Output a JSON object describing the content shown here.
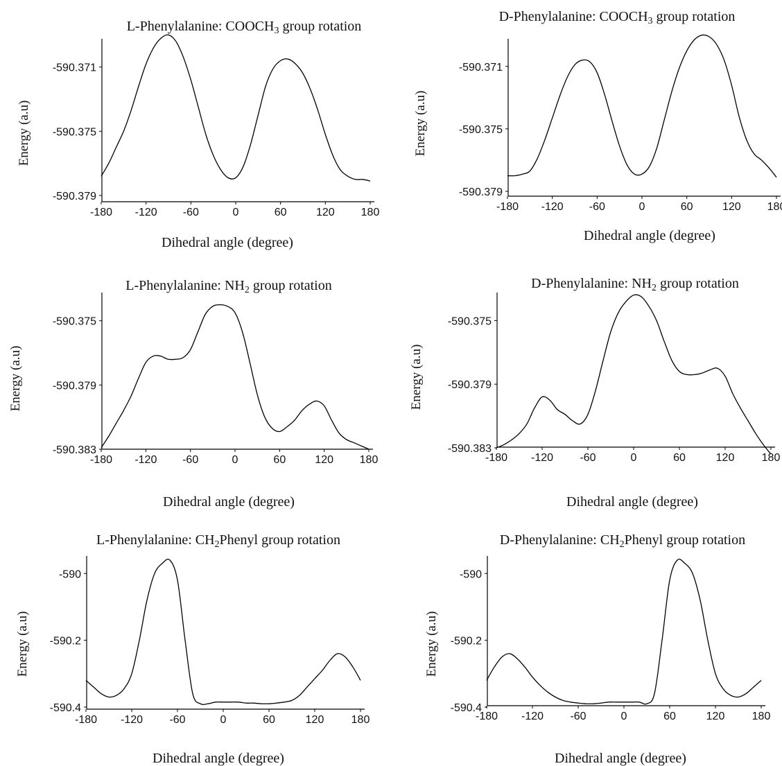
{
  "chart_data": [
    {
      "type": "line",
      "title": "L-Phenylalanine: COOCH₃ group rotation",
      "xlabel": "Dihedral angle (degree)",
      "ylabel": "Energy (a.u)",
      "xlim": [
        -180,
        180
      ],
      "ylim": [
        -590.379,
        -590.3695
      ],
      "x_ticks": [
        "-180",
        "-120",
        "-60",
        "0",
        "60",
        "120",
        "180"
      ],
      "y_ticks": [
        "-590.371",
        "-590.375",
        "-590.379"
      ],
      "series": [
        {
          "x": [
            -180,
            -170,
            -160,
            -150,
            -140,
            -130,
            -120,
            -110,
            -100,
            -90,
            -80,
            -70,
            -60,
            -50,
            -40,
            -30,
            -20,
            -10,
            0,
            10,
            20,
            30,
            40,
            50,
            60,
            70,
            80,
            90,
            100,
            110,
            120,
            130,
            140,
            150,
            160,
            170,
            180
          ],
          "y": [
            -590.3778,
            -590.377,
            -590.376,
            -590.375,
            -590.3737,
            -590.3722,
            -590.3708,
            -590.3698,
            -590.3692,
            -590.369,
            -590.3694,
            -590.3704,
            -590.3718,
            -590.3735,
            -590.3752,
            -590.3765,
            -590.3774,
            -590.3779,
            -590.3779,
            -590.3772,
            -590.3758,
            -590.374,
            -590.3722,
            -590.3711,
            -590.3706,
            -590.3705,
            -590.3708,
            -590.3714,
            -590.3724,
            -590.3737,
            -590.3752,
            -590.3765,
            -590.3774,
            -590.3778,
            -590.378,
            -590.378,
            -590.3781
          ]
        }
      ]
    },
    {
      "type": "line",
      "title": "D-Phenylalanine: COOCH₃ group rotation",
      "xlabel": "Dihedral angle (degree)",
      "ylabel": "Energy (a.u)",
      "xlim": [
        -180,
        180
      ],
      "ylim": [
        -590.379,
        -590.3695
      ],
      "x_ticks": [
        "-180",
        "-120",
        "-60",
        "0",
        "60",
        "120",
        "180"
      ],
      "y_ticks": [
        "-590.371",
        "-590.375",
        "-590.379"
      ],
      "series": [
        {
          "x": [
            -180,
            -170,
            -160,
            -150,
            -140,
            -130,
            -120,
            -110,
            -100,
            -90,
            -80,
            -70,
            -60,
            -50,
            -40,
            -30,
            -20,
            -10,
            0,
            10,
            20,
            30,
            40,
            50,
            60,
            70,
            80,
            90,
            100,
            110,
            120,
            130,
            140,
            150,
            160,
            170,
            180
          ],
          "y": [
            -590.378,
            -590.378,
            -590.3779,
            -590.3777,
            -590.3769,
            -590.3757,
            -590.3743,
            -590.3729,
            -590.3717,
            -590.3709,
            -590.3706,
            -590.3707,
            -590.3714,
            -590.3728,
            -590.3745,
            -590.3761,
            -590.3773,
            -590.3779,
            -590.3779,
            -590.3774,
            -590.3762,
            -590.3744,
            -590.3726,
            -590.3711,
            -590.37,
            -590.3693,
            -590.369,
            -590.3691,
            -590.3696,
            -590.3706,
            -590.3722,
            -590.3742,
            -590.3757,
            -590.3766,
            -590.377,
            -590.3775,
            -590.3781
          ]
        }
      ]
    },
    {
      "type": "line",
      "title": "L-Phenylalanine: NH₂ group rotation",
      "xlabel": "Dihedral angle (degree)",
      "ylabel": "Energy (a.u)",
      "xlim": [
        -180,
        180
      ],
      "ylim": [
        -590.383,
        -590.3735
      ],
      "x_ticks": [
        "-180",
        "-120",
        "-60",
        "0",
        "60",
        "120",
        "180"
      ],
      "y_ticks": [
        "-590.375",
        "-590.379",
        "-590.383"
      ],
      "series": [
        {
          "x": [
            -180,
            -170,
            -160,
            -150,
            -140,
            -130,
            -120,
            -110,
            -100,
            -90,
            -80,
            -70,
            -60,
            -50,
            -40,
            -30,
            -20,
            -10,
            0,
            10,
            20,
            30,
            40,
            50,
            60,
            70,
            80,
            90,
            100,
            110,
            120,
            130,
            140,
            150,
            160,
            170,
            180
          ],
          "y": [
            -590.3829,
            -590.3822,
            -590.3814,
            -590.3806,
            -590.3797,
            -590.3786,
            -590.3776,
            -590.3772,
            -590.3772,
            -590.3774,
            -590.3774,
            -590.3773,
            -590.3768,
            -590.3757,
            -590.3746,
            -590.3741,
            -590.374,
            -590.3741,
            -590.3745,
            -590.3757,
            -590.3776,
            -590.3796,
            -590.381,
            -590.3817,
            -590.3819,
            -590.3816,
            -590.3812,
            -590.3806,
            -590.3802,
            -590.38,
            -590.3803,
            -590.3812,
            -590.382,
            -590.3824,
            -590.3826,
            -590.3828,
            -590.383
          ]
        }
      ]
    },
    {
      "type": "line",
      "title": "D-Phenylalanine: NH₂ group rotation",
      "xlabel": "Dihedral angle (degree)",
      "ylabel": "Energy (a.u)",
      "xlim": [
        -180,
        180
      ],
      "ylim": [
        -590.383,
        -590.3735
      ],
      "x_ticks": [
        "-180",
        "-120",
        "-60",
        "0",
        "60",
        "120",
        "180"
      ],
      "y_ticks": [
        "-590.375",
        "-590.379",
        "-590.383"
      ],
      "series": [
        {
          "x": [
            -180,
            -170,
            -160,
            -150,
            -140,
            -130,
            -120,
            -110,
            -100,
            -90,
            -80,
            -70,
            -60,
            -50,
            -40,
            -30,
            -20,
            -10,
            0,
            10,
            20,
            30,
            40,
            50,
            60,
            70,
            80,
            90,
            100,
            110,
            120,
            130,
            140,
            150,
            160,
            170,
            180
          ],
          "y": [
            -590.383,
            -590.3828,
            -590.3825,
            -590.3821,
            -590.3815,
            -590.3805,
            -590.3798,
            -590.38,
            -590.3806,
            -590.3809,
            -590.3813,
            -590.3815,
            -590.3809,
            -590.3794,
            -590.3775,
            -590.3757,
            -590.3745,
            -590.3738,
            -590.3734,
            -590.3735,
            -590.3741,
            -590.375,
            -590.3763,
            -590.3775,
            -590.3782,
            -590.3784,
            -590.3784,
            -590.3783,
            -590.3781,
            -590.378,
            -590.3785,
            -590.3796,
            -590.3805,
            -590.3813,
            -590.3821,
            -590.3828,
            -590.3834
          ]
        }
      ]
    },
    {
      "type": "line",
      "title": "L-Phenylalanine: CH₂Phenyl group rotation",
      "xlabel": "Dihedral angle (degree)",
      "ylabel": "Energy (a.u)",
      "xlim": [
        -180,
        180
      ],
      "ylim": [
        -590.4,
        -589.96
      ],
      "x_ticks": [
        "-180",
        "-120",
        "-60",
        "0",
        "60",
        "120",
        "180"
      ],
      "y_ticks": [
        "-590",
        "-590.2",
        "-590.4"
      ],
      "series": [
        {
          "x": [
            -180,
            -170,
            -160,
            -150,
            -140,
            -130,
            -120,
            -110,
            -100,
            -90,
            -80,
            -70,
            -60,
            -50,
            -40,
            -30,
            -20,
            -10,
            0,
            10,
            20,
            30,
            40,
            50,
            60,
            70,
            80,
            90,
            100,
            110,
            120,
            130,
            140,
            150,
            160,
            170,
            180
          ],
          "y": [
            -590.32,
            -590.34,
            -590.36,
            -590.37,
            -590.365,
            -590.345,
            -590.3,
            -590.2,
            -590.08,
            -590.0,
            -589.97,
            -589.96,
            -590.02,
            -590.2,
            -590.36,
            -590.39,
            -590.39,
            -590.385,
            -590.385,
            -590.385,
            -590.385,
            -590.388,
            -590.388,
            -590.39,
            -590.39,
            -590.388,
            -590.385,
            -590.38,
            -590.365,
            -590.34,
            -590.315,
            -590.29,
            -590.26,
            -590.24,
            -590.25,
            -590.28,
            -590.32
          ]
        }
      ]
    },
    {
      "type": "line",
      "title": "D-Phenylalanine: CH₂Phenyl group rotation",
      "xlabel": "Dihedral angle (degree)",
      "ylabel": "Energy (a.u)",
      "xlim": [
        -180,
        180
      ],
      "ylim": [
        -590.4,
        -589.96
      ],
      "x_ticks": [
        "-180",
        "-120",
        "-60",
        "0",
        "60",
        "120",
        "180"
      ],
      "y_ticks": [
        "-590",
        "-590.2",
        "-590.4"
      ],
      "series": [
        {
          "x": [
            -180,
            -170,
            -160,
            -150,
            -140,
            -130,
            -120,
            -110,
            -100,
            -90,
            -80,
            -70,
            -60,
            -50,
            -40,
            -30,
            -20,
            -10,
            0,
            10,
            20,
            30,
            40,
            50,
            60,
            70,
            80,
            90,
            100,
            110,
            120,
            130,
            140,
            150,
            160,
            170,
            180
          ],
          "y": [
            -590.32,
            -590.28,
            -590.25,
            -590.24,
            -590.255,
            -590.28,
            -590.31,
            -590.335,
            -590.355,
            -590.37,
            -590.38,
            -590.385,
            -590.388,
            -590.39,
            -590.39,
            -590.388,
            -590.385,
            -590.385,
            -590.385,
            -590.385,
            -590.385,
            -590.39,
            -590.36,
            -590.2,
            -590.02,
            -589.96,
            -589.97,
            -590.0,
            -590.08,
            -590.2,
            -590.3,
            -590.345,
            -590.365,
            -590.37,
            -590.36,
            -590.34,
            -590.32
          ]
        }
      ]
    }
  ]
}
